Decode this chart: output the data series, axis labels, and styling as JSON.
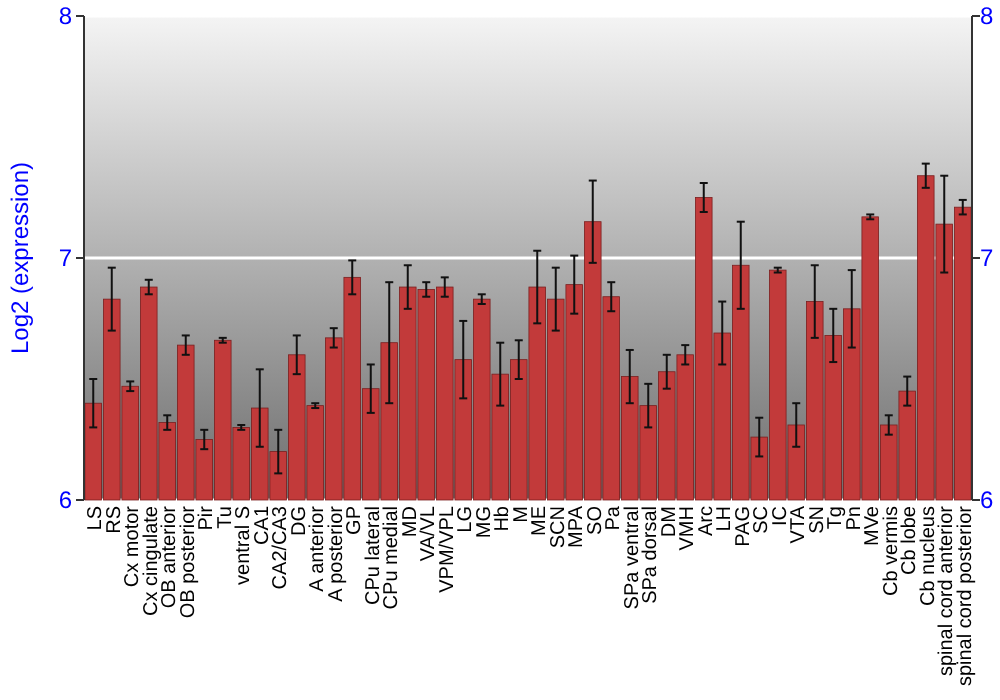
{
  "chart_data": {
    "type": "bar",
    "ylabel": "Log2 (expression)",
    "categories": [
      "LS",
      "RS",
      "Cx motor",
      "Cx cingulate",
      "OB anterior",
      "OB posterior",
      "Pir",
      "Tu",
      "ventral S",
      "CA1",
      "CA2/CA3",
      "DG",
      "A anterior",
      "A posterior",
      "GP",
      "CPu lateral",
      "CPu medial",
      "MD",
      "VA/VL",
      "VPM/VPL",
      "LG",
      "MG",
      "Hb",
      "M",
      "ME",
      "SCN",
      "MPA",
      "SO",
      "Pa",
      "SPa ventral",
      "SPa dorsal",
      "DM",
      "VMH",
      "Arc",
      "LH",
      "PAG",
      "SC",
      "IC",
      "VTA",
      "SN",
      "Tg",
      "Pn",
      "MVe",
      "Cb vermis",
      "Cb lobe",
      "Cb nucleus",
      "spinal cord anterior",
      "spinal cord posterior"
    ],
    "values": [
      6.4,
      6.83,
      6.47,
      6.88,
      6.32,
      6.64,
      6.25,
      6.66,
      6.3,
      6.38,
      6.2,
      6.6,
      6.39,
      6.67,
      6.92,
      6.46,
      6.65,
      6.88,
      6.87,
      6.88,
      6.58,
      6.83,
      6.52,
      6.58,
      6.88,
      6.83,
      6.89,
      7.15,
      6.84,
      6.51,
      6.39,
      6.53,
      6.6,
      7.25,
      6.69,
      6.97,
      6.26,
      6.95,
      6.31,
      6.82,
      6.68,
      6.79,
      7.17,
      6.31,
      6.45,
      7.34,
      7.14,
      7.21
    ],
    "errors": [
      0.1,
      0.13,
      0.02,
      0.03,
      0.03,
      0.04,
      0.04,
      0.01,
      0.01,
      0.16,
      0.09,
      0.08,
      0.01,
      0.04,
      0.07,
      0.1,
      0.25,
      0.09,
      0.03,
      0.04,
      0.16,
      0.02,
      0.13,
      0.08,
      0.15,
      0.13,
      0.12,
      0.17,
      0.06,
      0.11,
      0.09,
      0.07,
      0.04,
      0.06,
      0.13,
      0.18,
      0.08,
      0.01,
      0.09,
      0.15,
      0.11,
      0.16,
      0.01,
      0.04,
      0.06,
      0.05,
      0.2,
      0.03
    ],
    "color": "#c23a3a",
    "ylim": [
      6,
      8
    ],
    "yticks": [
      6,
      7,
      8
    ],
    "y2lim": [
      6,
      8
    ],
    "y2ticks": [
      6,
      7,
      8
    ],
    "grid": "y"
  }
}
